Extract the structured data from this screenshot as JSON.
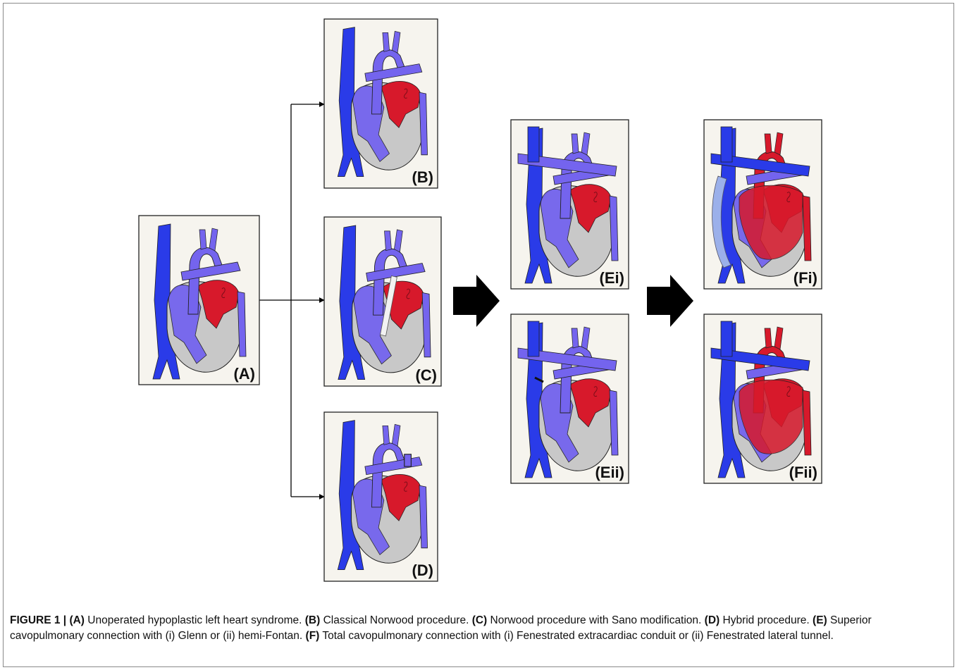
{
  "panels": [
    {
      "id": "A",
      "label": "(A)",
      "variant": "unoperated"
    },
    {
      "id": "B",
      "label": "(B)",
      "variant": "norwood"
    },
    {
      "id": "C",
      "label": "(C)",
      "variant": "sano"
    },
    {
      "id": "D",
      "label": "(D)",
      "variant": "hybrid"
    },
    {
      "id": "Ei",
      "label": "(Ei)",
      "variant": "glenn"
    },
    {
      "id": "Eii",
      "label": "(Eii)",
      "variant": "hemifontan"
    },
    {
      "id": "Fi",
      "label": "(Fi)",
      "variant": "extracardiac"
    },
    {
      "id": "Fii",
      "label": "(Fii)",
      "variant": "lateral"
    }
  ],
  "caption": {
    "figure_label": "FIGURE 1 |",
    "parts": [
      {
        "tag": "(A)",
        "text": "Unoperated hypoplastic left heart syndrome."
      },
      {
        "tag": "(B)",
        "text": "Classical Norwood procedure."
      },
      {
        "tag": "(C)",
        "text": "Norwood procedure with Sano modification."
      },
      {
        "tag": "(D)",
        "text": "Hybrid procedure."
      },
      {
        "tag": "(E)",
        "text": "Superior cavopulmonary connection with (i) Glenn or (ii) hemi-Fontan."
      },
      {
        "tag": "(F)",
        "text": "Total cavopulmonary connection with (i) Fenestrated extracardiac conduit or (ii) Fenestrated lateral tunnel."
      }
    ]
  },
  "colors": {
    "deoxygenated": "#2a3be8",
    "mixed": "#7464ee",
    "oxygenated": "#d7192b",
    "ventricle": "#c8c8c8",
    "panel_bg": "#f6f4ee",
    "conduit": "#9bb0ea",
    "arrow": "#000000"
  }
}
